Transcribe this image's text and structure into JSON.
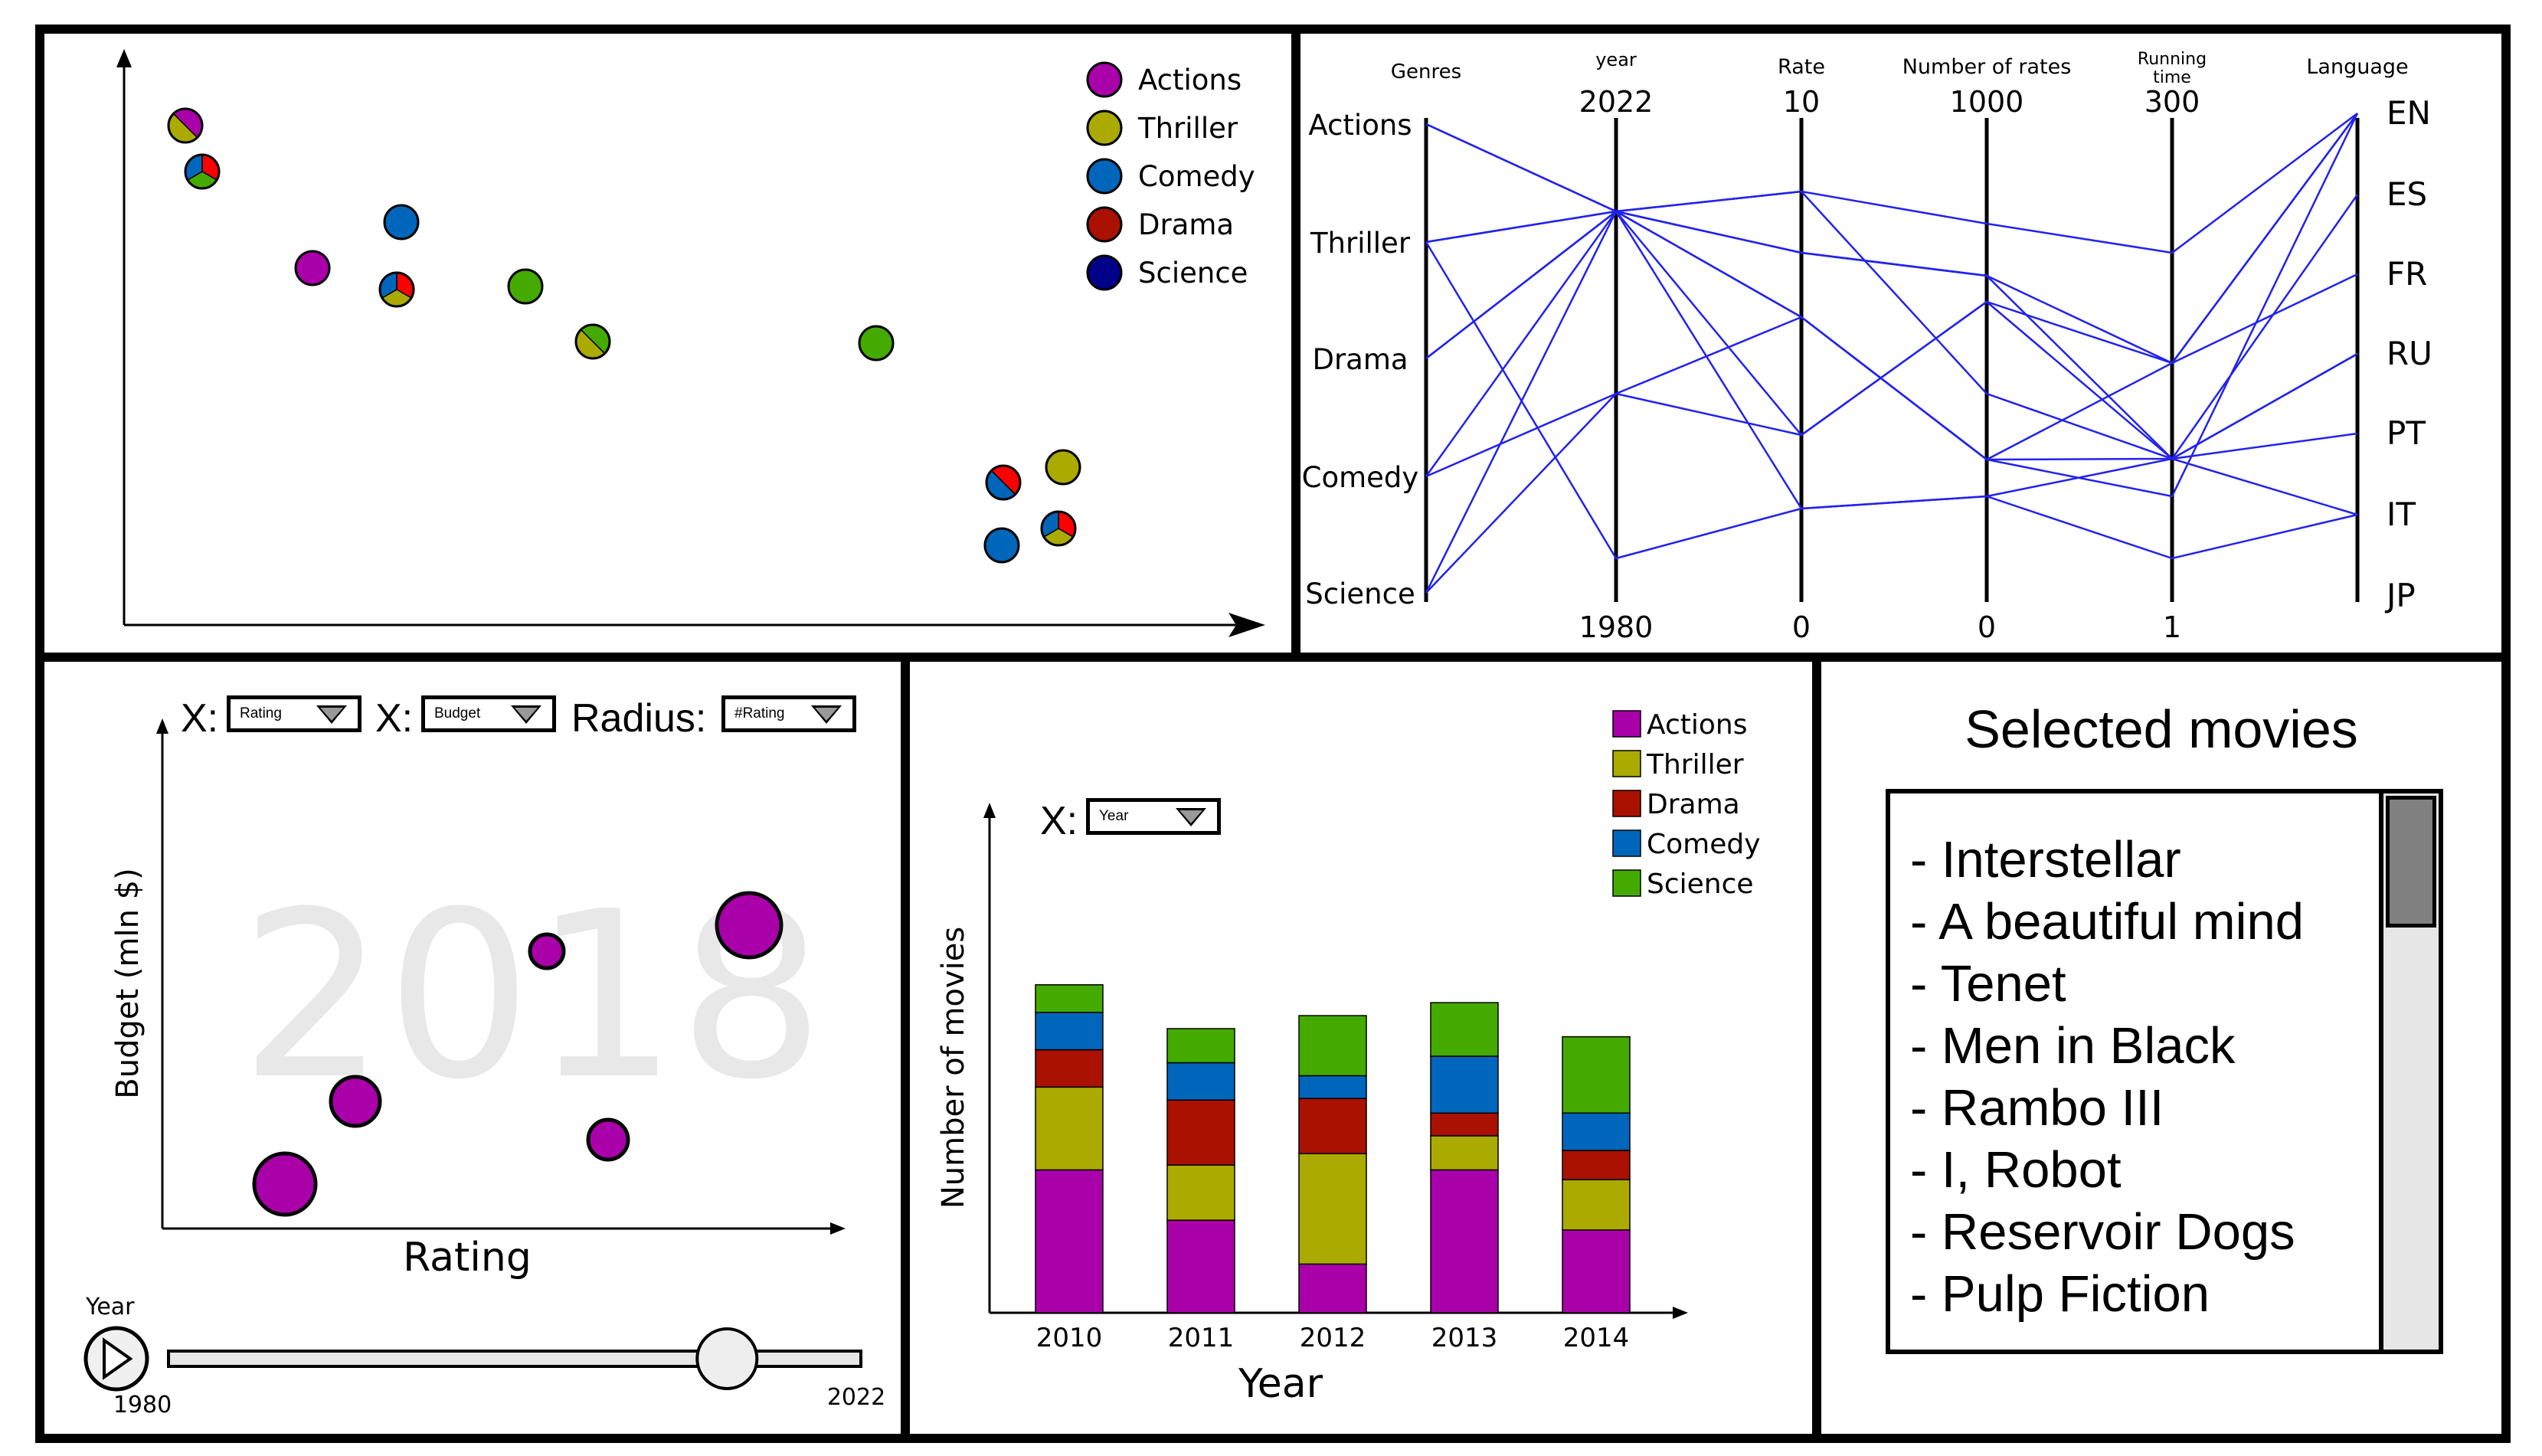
{
  "colors": {
    "actions": "#aa00aa",
    "thriller": "#aaaa00",
    "comedy": "#0066bb",
    "drama": "#aa1100",
    "science": "#44aa00",
    "science_legend": "#000088",
    "red": "#ff0000",
    "line_blue": "#2222ee"
  },
  "scatter_top": {
    "legend": [
      "Actions",
      "Thriller",
      "Comedy",
      "Drama",
      "Science"
    ]
  },
  "parallel": {
    "axes": [
      {
        "title": "Genres",
        "labels": [
          "Actions",
          "Thriller",
          "Drama",
          "Comedy",
          "Science"
        ]
      },
      {
        "title": "year",
        "top": "2022",
        "bottom": "1980"
      },
      {
        "title": "Rate",
        "top": "10",
        "bottom": "0"
      },
      {
        "title": "Number of rates",
        "top": "1000",
        "bottom": "0"
      },
      {
        "title_line1": "Running",
        "title_line2": "time",
        "top": "300",
        "bottom": "1"
      },
      {
        "title": "Language",
        "labels": [
          "EN",
          "ES",
          "FR",
          "RU",
          "PT",
          "IT",
          "JP"
        ]
      }
    ]
  },
  "bubble": {
    "x_label_1": "X:",
    "x_select_1": "Rating",
    "x_label_2": "X:",
    "x_select_2": "Budget",
    "radius_label": "Radius:",
    "radius_select": "#Rating",
    "y_axis": "Budget (mln $)",
    "x_axis": "Rating",
    "watermark": "2018",
    "slider": {
      "label": "Year",
      "min": "1980",
      "max": "2022",
      "value_fraction": 0.82
    }
  },
  "bar_chart": {
    "x_label": "X:",
    "x_select": "Year",
    "ylabel": "Number of movies",
    "xlabel": "Year",
    "legend": [
      "Actions",
      "Thriller",
      "Drama",
      "Comedy",
      "Science"
    ]
  },
  "chart_data": {
    "type": "bar",
    "stacked": true,
    "categories": [
      "2010",
      "2011",
      "2012",
      "2013",
      "2014"
    ],
    "series": [
      {
        "name": "Actions",
        "values": [
          88,
          57,
          30,
          88,
          51
        ]
      },
      {
        "name": "Thriller",
        "values": [
          51,
          34,
          68,
          21,
          31
        ]
      },
      {
        "name": "Drama",
        "values": [
          23,
          40,
          34,
          14,
          18
        ]
      },
      {
        "name": "Comedy",
        "values": [
          23,
          23,
          14,
          35,
          23
        ]
      },
      {
        "name": "Science",
        "values": [
          17,
          21,
          37,
          33,
          47
        ]
      }
    ],
    "xlabel": "Year",
    "ylabel": "Number of movies",
    "legend_position": "top-right"
  },
  "selected": {
    "title": "Selected movies",
    "items": [
      "- Interstellar",
      "- A beautiful mind",
      "- Tenet",
      "- Men in Black",
      "- Rambo III",
      "- I, Robot",
      "- Reservoir Dogs",
      "- Pulp Fiction"
    ]
  }
}
